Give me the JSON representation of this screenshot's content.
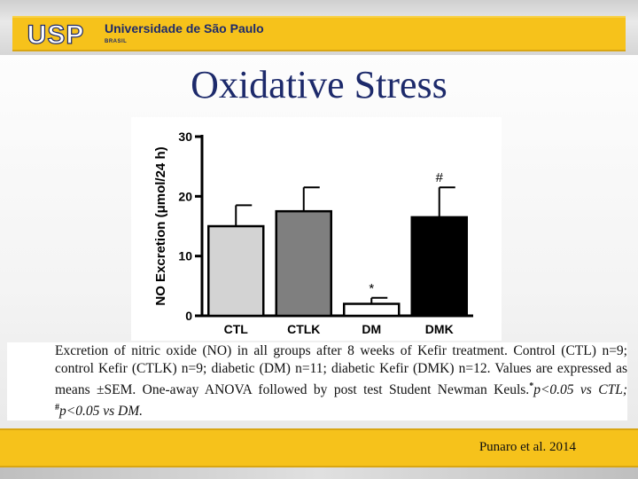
{
  "header": {
    "university_name": "Universidade de São Paulo",
    "country": "BRASIL",
    "logo_text": "USP",
    "brand_color": "#f6c21b",
    "text_color": "#1d2a6b"
  },
  "slide": {
    "title": "Oxidative Stress"
  },
  "chart_data": {
    "type": "bar",
    "categories": [
      "CTL",
      "CTLK",
      "DM",
      "DMK"
    ],
    "values": [
      15.0,
      17.5,
      2.0,
      16.5
    ],
    "errors": [
      3.5,
      4.0,
      1.0,
      5.0
    ],
    "bar_colors": [
      "#d3d3d3",
      "#7f7f7f",
      "#ffffff",
      "#000000"
    ],
    "annotations": [
      "",
      "",
      "*",
      "#"
    ],
    "ylabel": "NO Excretion (μmol/24 h)",
    "ylim": [
      0,
      30
    ],
    "yticks": [
      0,
      10,
      20,
      30
    ],
    "title": "",
    "grid": false
  },
  "caption": {
    "line1": "Excretion of nitric oxide (NO) in all groups after 8 weeks of Kefir treatment. Control (CTL) n=9; control Kefir (CTLK) n=9; diabetic (DM) n=11; diabetic Kefir (DMK) n=12. Values are expressed as means ±SEM. One-away ANOVA followed by post test Student Newman Keuls.",
    "sig1_mark": "*",
    "sig1_text": "p<0.05 vs CTL;",
    "sig2_mark": "#",
    "sig2_text": "p<0.05 vs DM."
  },
  "footer": {
    "citation": "Punaro et al. 2014"
  }
}
